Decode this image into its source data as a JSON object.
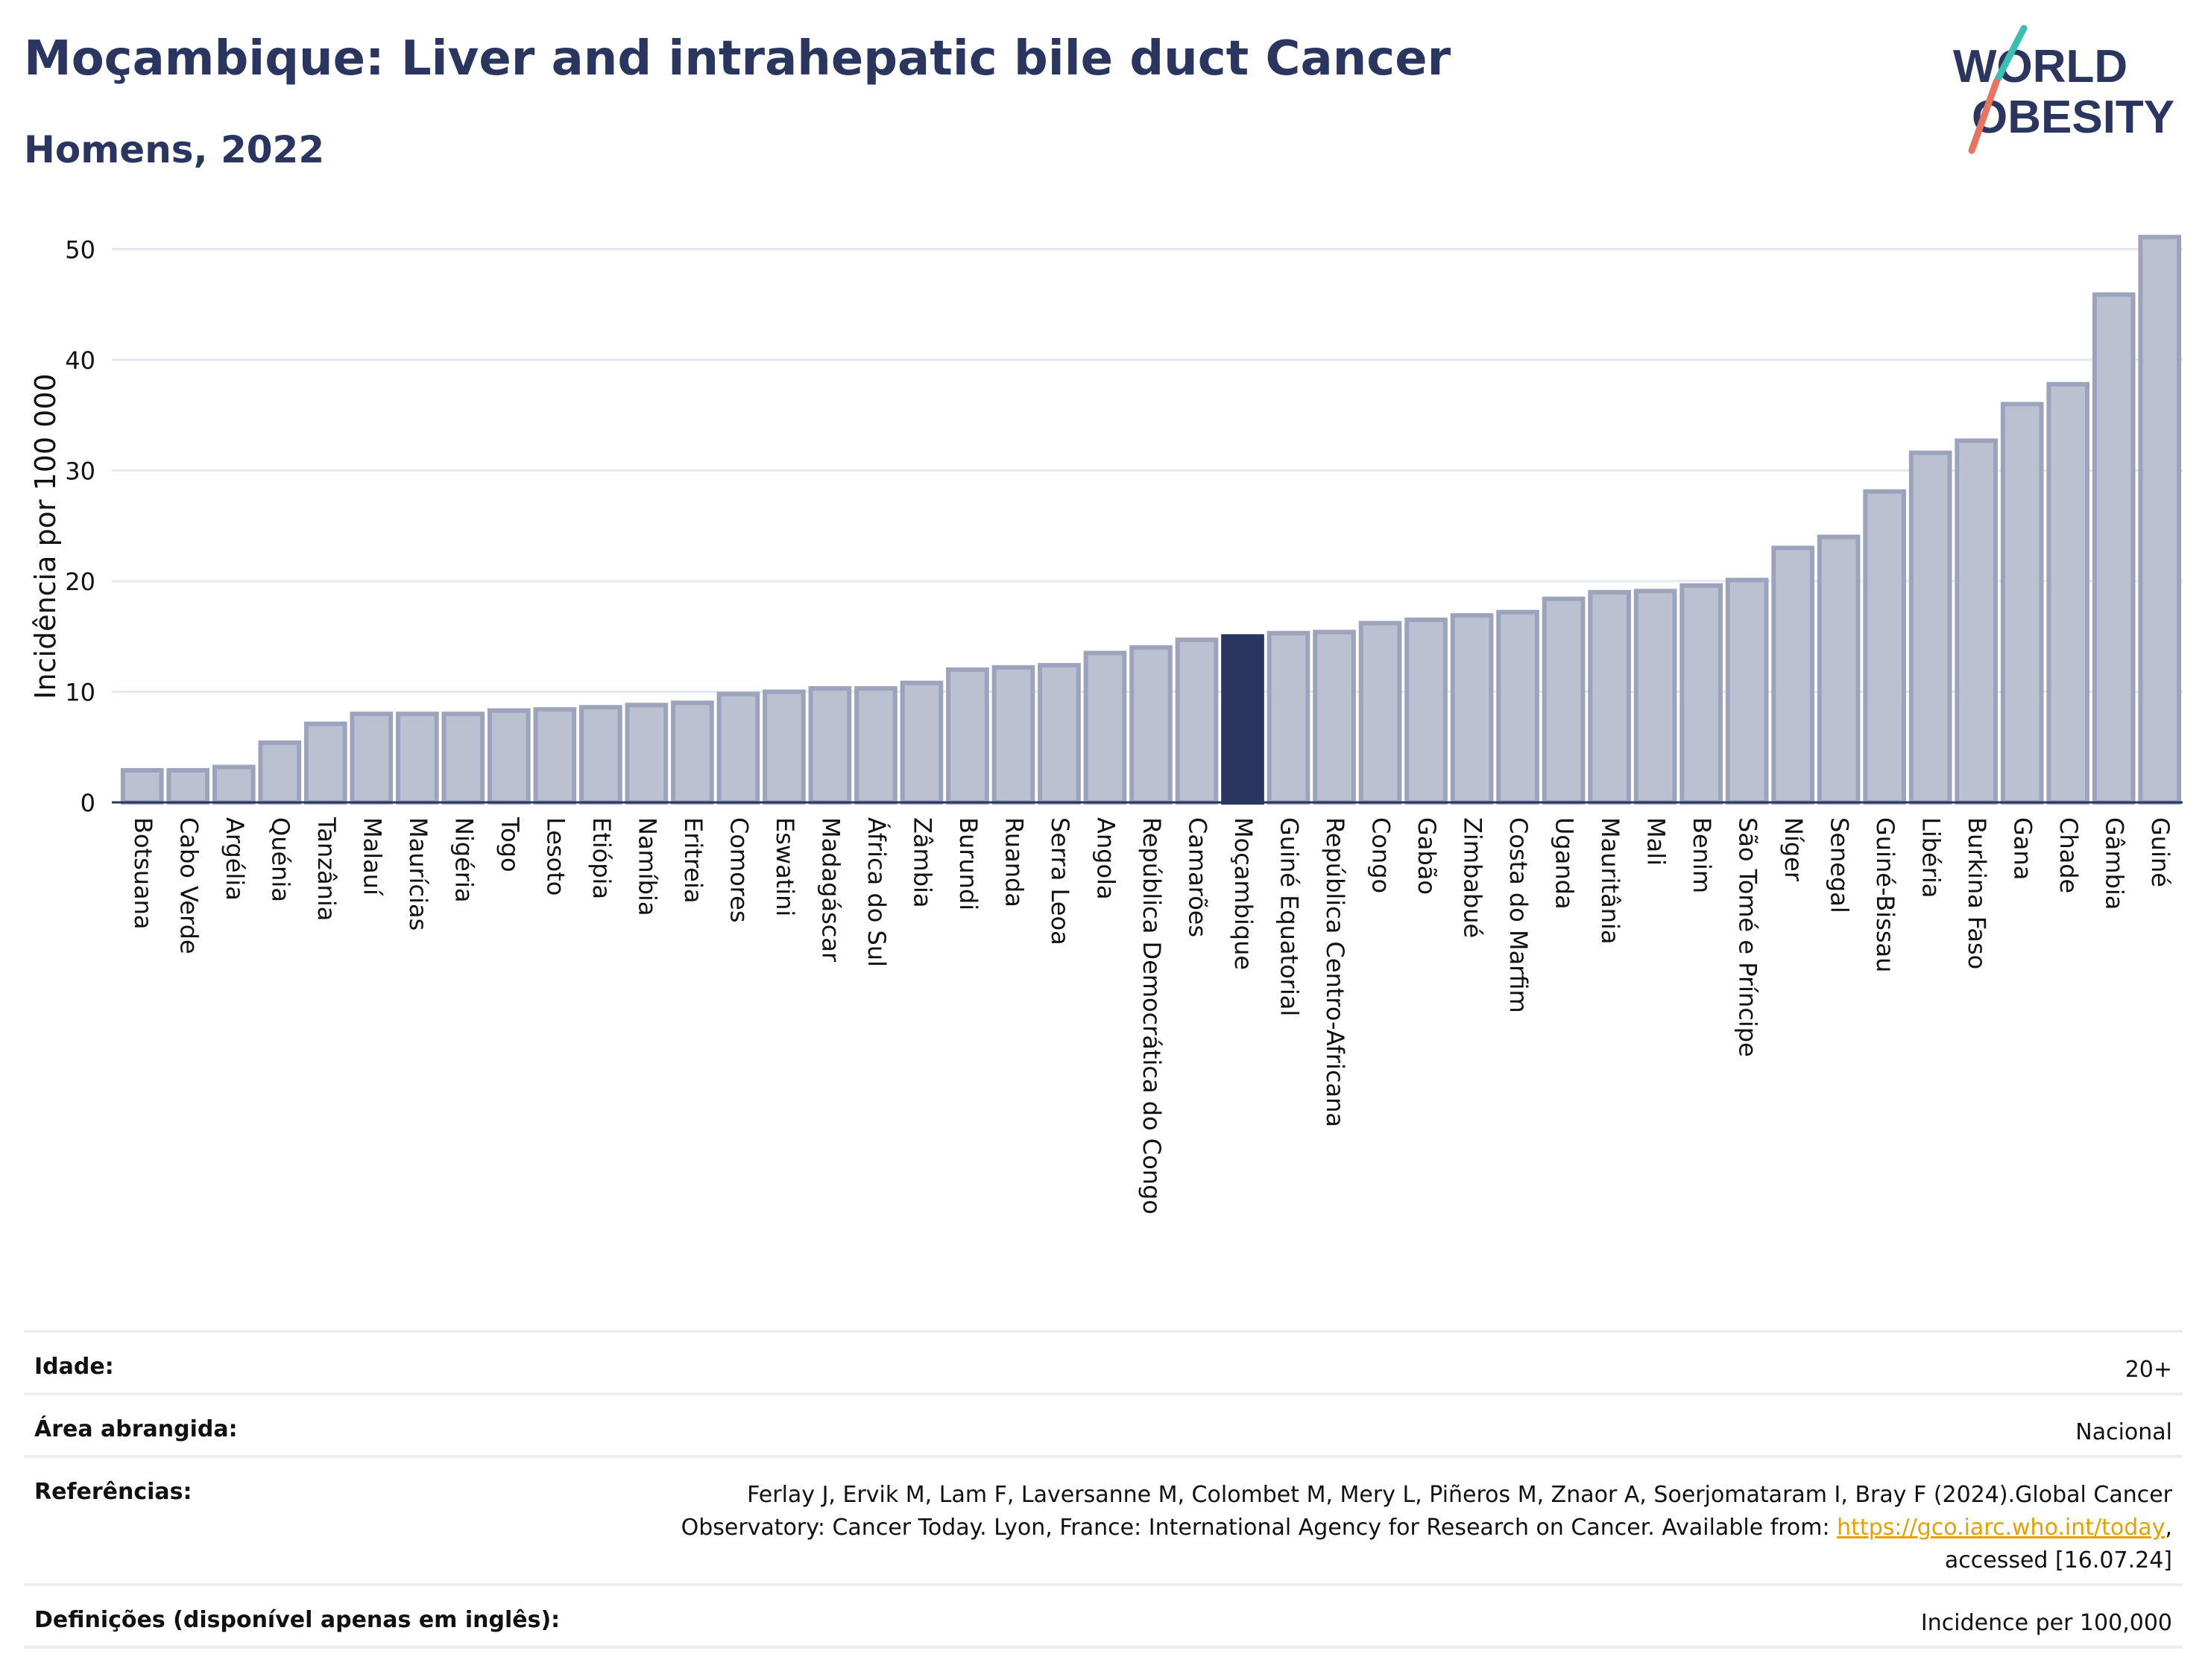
{
  "header": {
    "title": "Moçambique: Liver and intrahepatic bile duct Cancer",
    "subtitle": "Homens, 2022"
  },
  "logo": {
    "line1": "WORLD",
    "line2": "OBESITY"
  },
  "colors": {
    "highlight": "#2a3560",
    "bar_fill": "#bcc1d1",
    "bar_stroke": "#9ca3bc",
    "grid": "#e6e8ef",
    "text": "#2a3560",
    "logo_teal": "#3bbfb4",
    "logo_coral": "#e8735f"
  },
  "chart_data": {
    "type": "bar",
    "ylabel": "Incidência por 100 000",
    "ylim": [
      0,
      53
    ],
    "yticks": [
      0,
      10,
      20,
      30,
      40,
      50
    ],
    "grid": true,
    "highlight": "Moçambique",
    "categories": [
      "Botsuana",
      "Cabo Verde",
      "Argélia",
      "Quénia",
      "Tanzânia",
      "Malauí",
      "Maurícias",
      "Nigéria",
      "Togo",
      "Lesoto",
      "Etiópia",
      "Namíbia",
      "Eritreia",
      "Comores",
      "Eswatini",
      "Madagáscar",
      "África do Sul",
      "Zâmbia",
      "Burundi",
      "Ruanda",
      "Serra Leoa",
      "Angola",
      "República Democrática do Congo",
      "Camarões",
      "Moçambique",
      "Guiné Equatorial",
      "República Centro-Africana",
      "Congo",
      "Gabão",
      "Zimbabué",
      "Costa do Marfim",
      "Uganda",
      "Mauritânia",
      "Mali",
      "Benim",
      "São Tomé e Príncipe",
      "Níger",
      "Senegal",
      "Guiné-Bissau",
      "Libéria",
      "Burkina Faso",
      "Gana",
      "Chade",
      "Gâmbia",
      "Guiné"
    ],
    "values": [
      2.9,
      2.9,
      3.2,
      5.4,
      7.1,
      8.0,
      8.0,
      8.0,
      8.3,
      8.4,
      8.6,
      8.8,
      9.0,
      9.8,
      10.0,
      10.3,
      10.3,
      10.8,
      12.0,
      12.2,
      12.4,
      13.5,
      14.0,
      14.7,
      15.0,
      15.3,
      15.4,
      16.2,
      16.5,
      16.9,
      17.2,
      18.4,
      19.0,
      19.1,
      19.6,
      20.1,
      23.0,
      24.0,
      28.1,
      31.6,
      32.7,
      36.0,
      37.8,
      45.9,
      51.1
    ]
  },
  "meta": [
    {
      "label": "Idade:",
      "value": "20+"
    },
    {
      "label": "Área abrangida:",
      "value": "Nacional"
    },
    {
      "label": "Referências:",
      "value_line1": "Ferlay J, Ervik M, Lam F, Laversanne M, Colombet M, Mery L, Piñeros M, Znaor A, Soerjomataram I, Bray F (2024).Global Cancer",
      "value_line2_pre": "Observatory: Cancer Today. Lyon, France: International Agency for Research on Cancer. Available from: ",
      "value_link": "https://gco.iarc.who.int/today",
      "value_line2_post": ",",
      "value_line3": "accessed [16.07.24]"
    },
    {
      "label": "Definições (disponível apenas em inglês):",
      "value": "Incidence per 100,000"
    }
  ]
}
